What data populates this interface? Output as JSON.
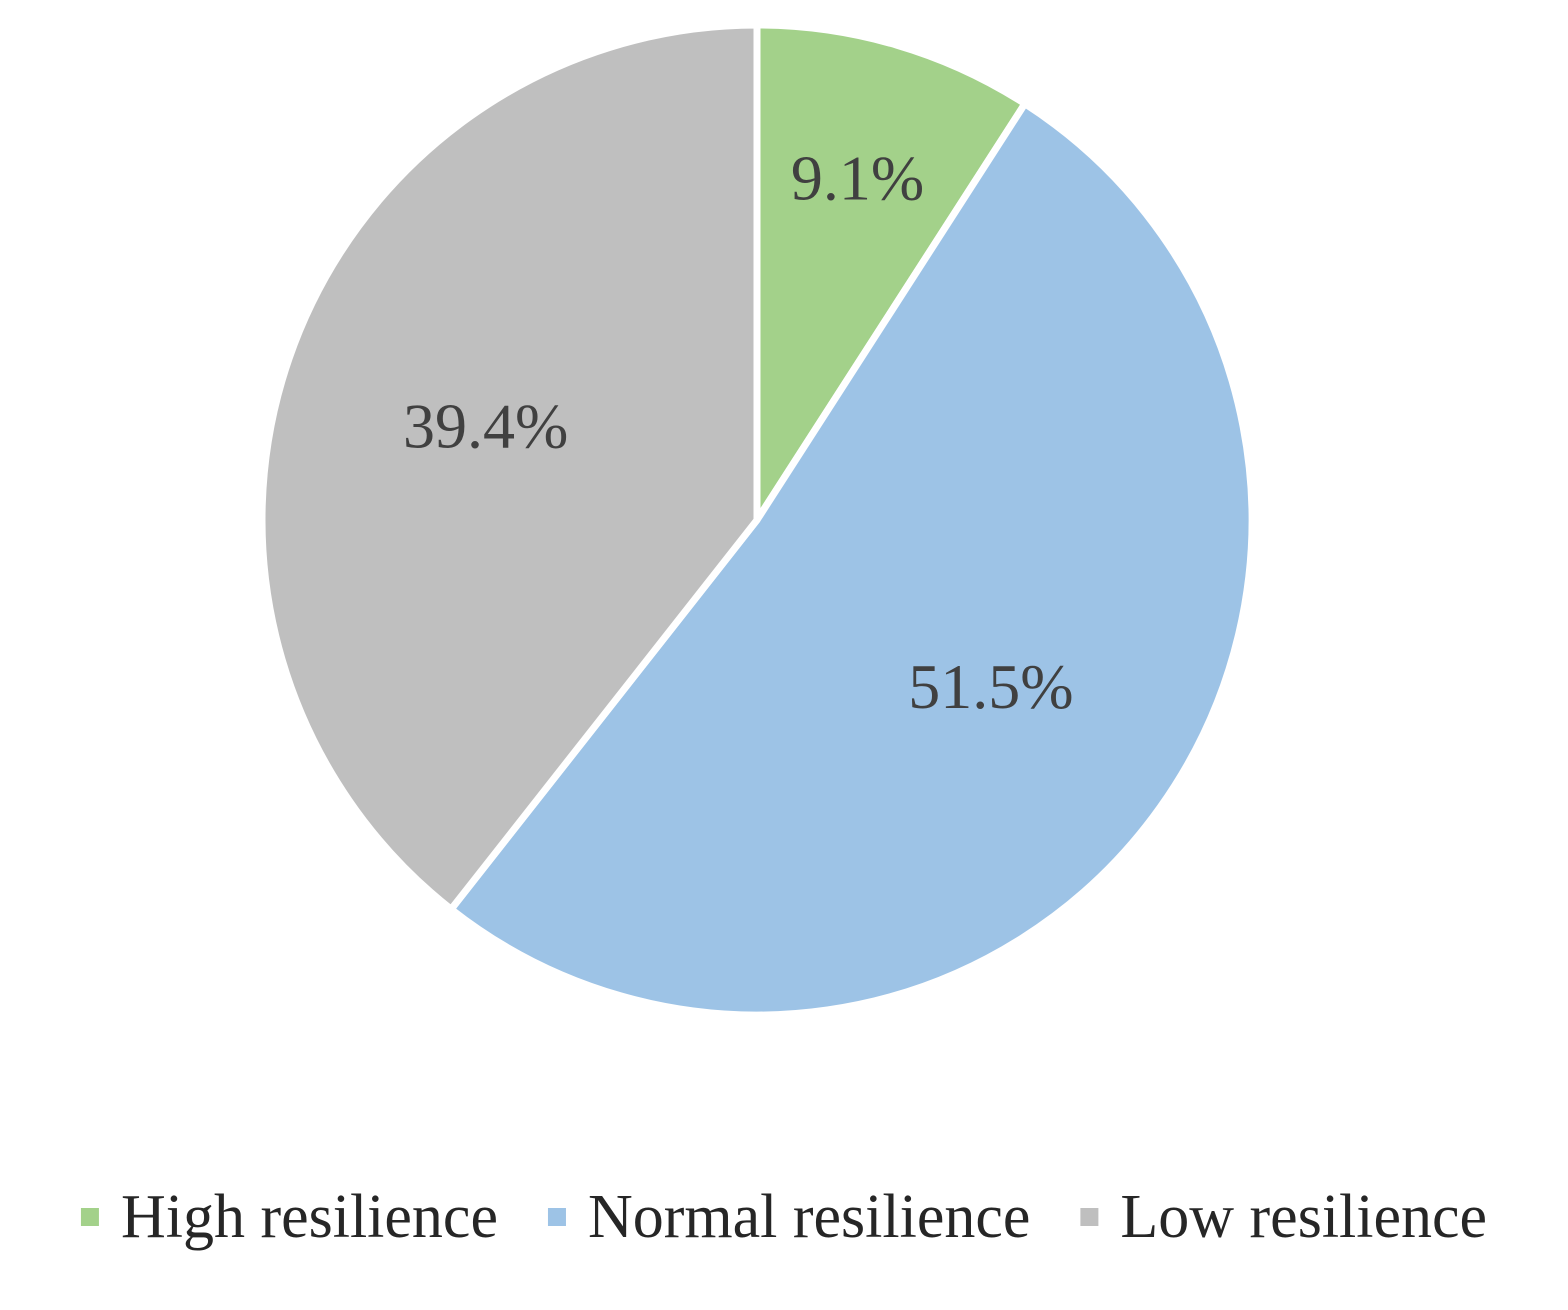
{
  "chart_data": {
    "type": "pie",
    "start_angle_deg": 0,
    "direction": "clockwise",
    "legend_position": "bottom",
    "slices": [
      {
        "label": "High resilience",
        "value": 9.1,
        "value_label": "9.1%",
        "color": "#a3d18a"
      },
      {
        "label": "Normal resilience",
        "value": 51.5,
        "value_label": "51.5%",
        "color": "#9dc3e6"
      },
      {
        "label": "Low resilience",
        "value": 39.4,
        "value_label": "39.4%",
        "color": "#bfbfbf"
      }
    ]
  }
}
